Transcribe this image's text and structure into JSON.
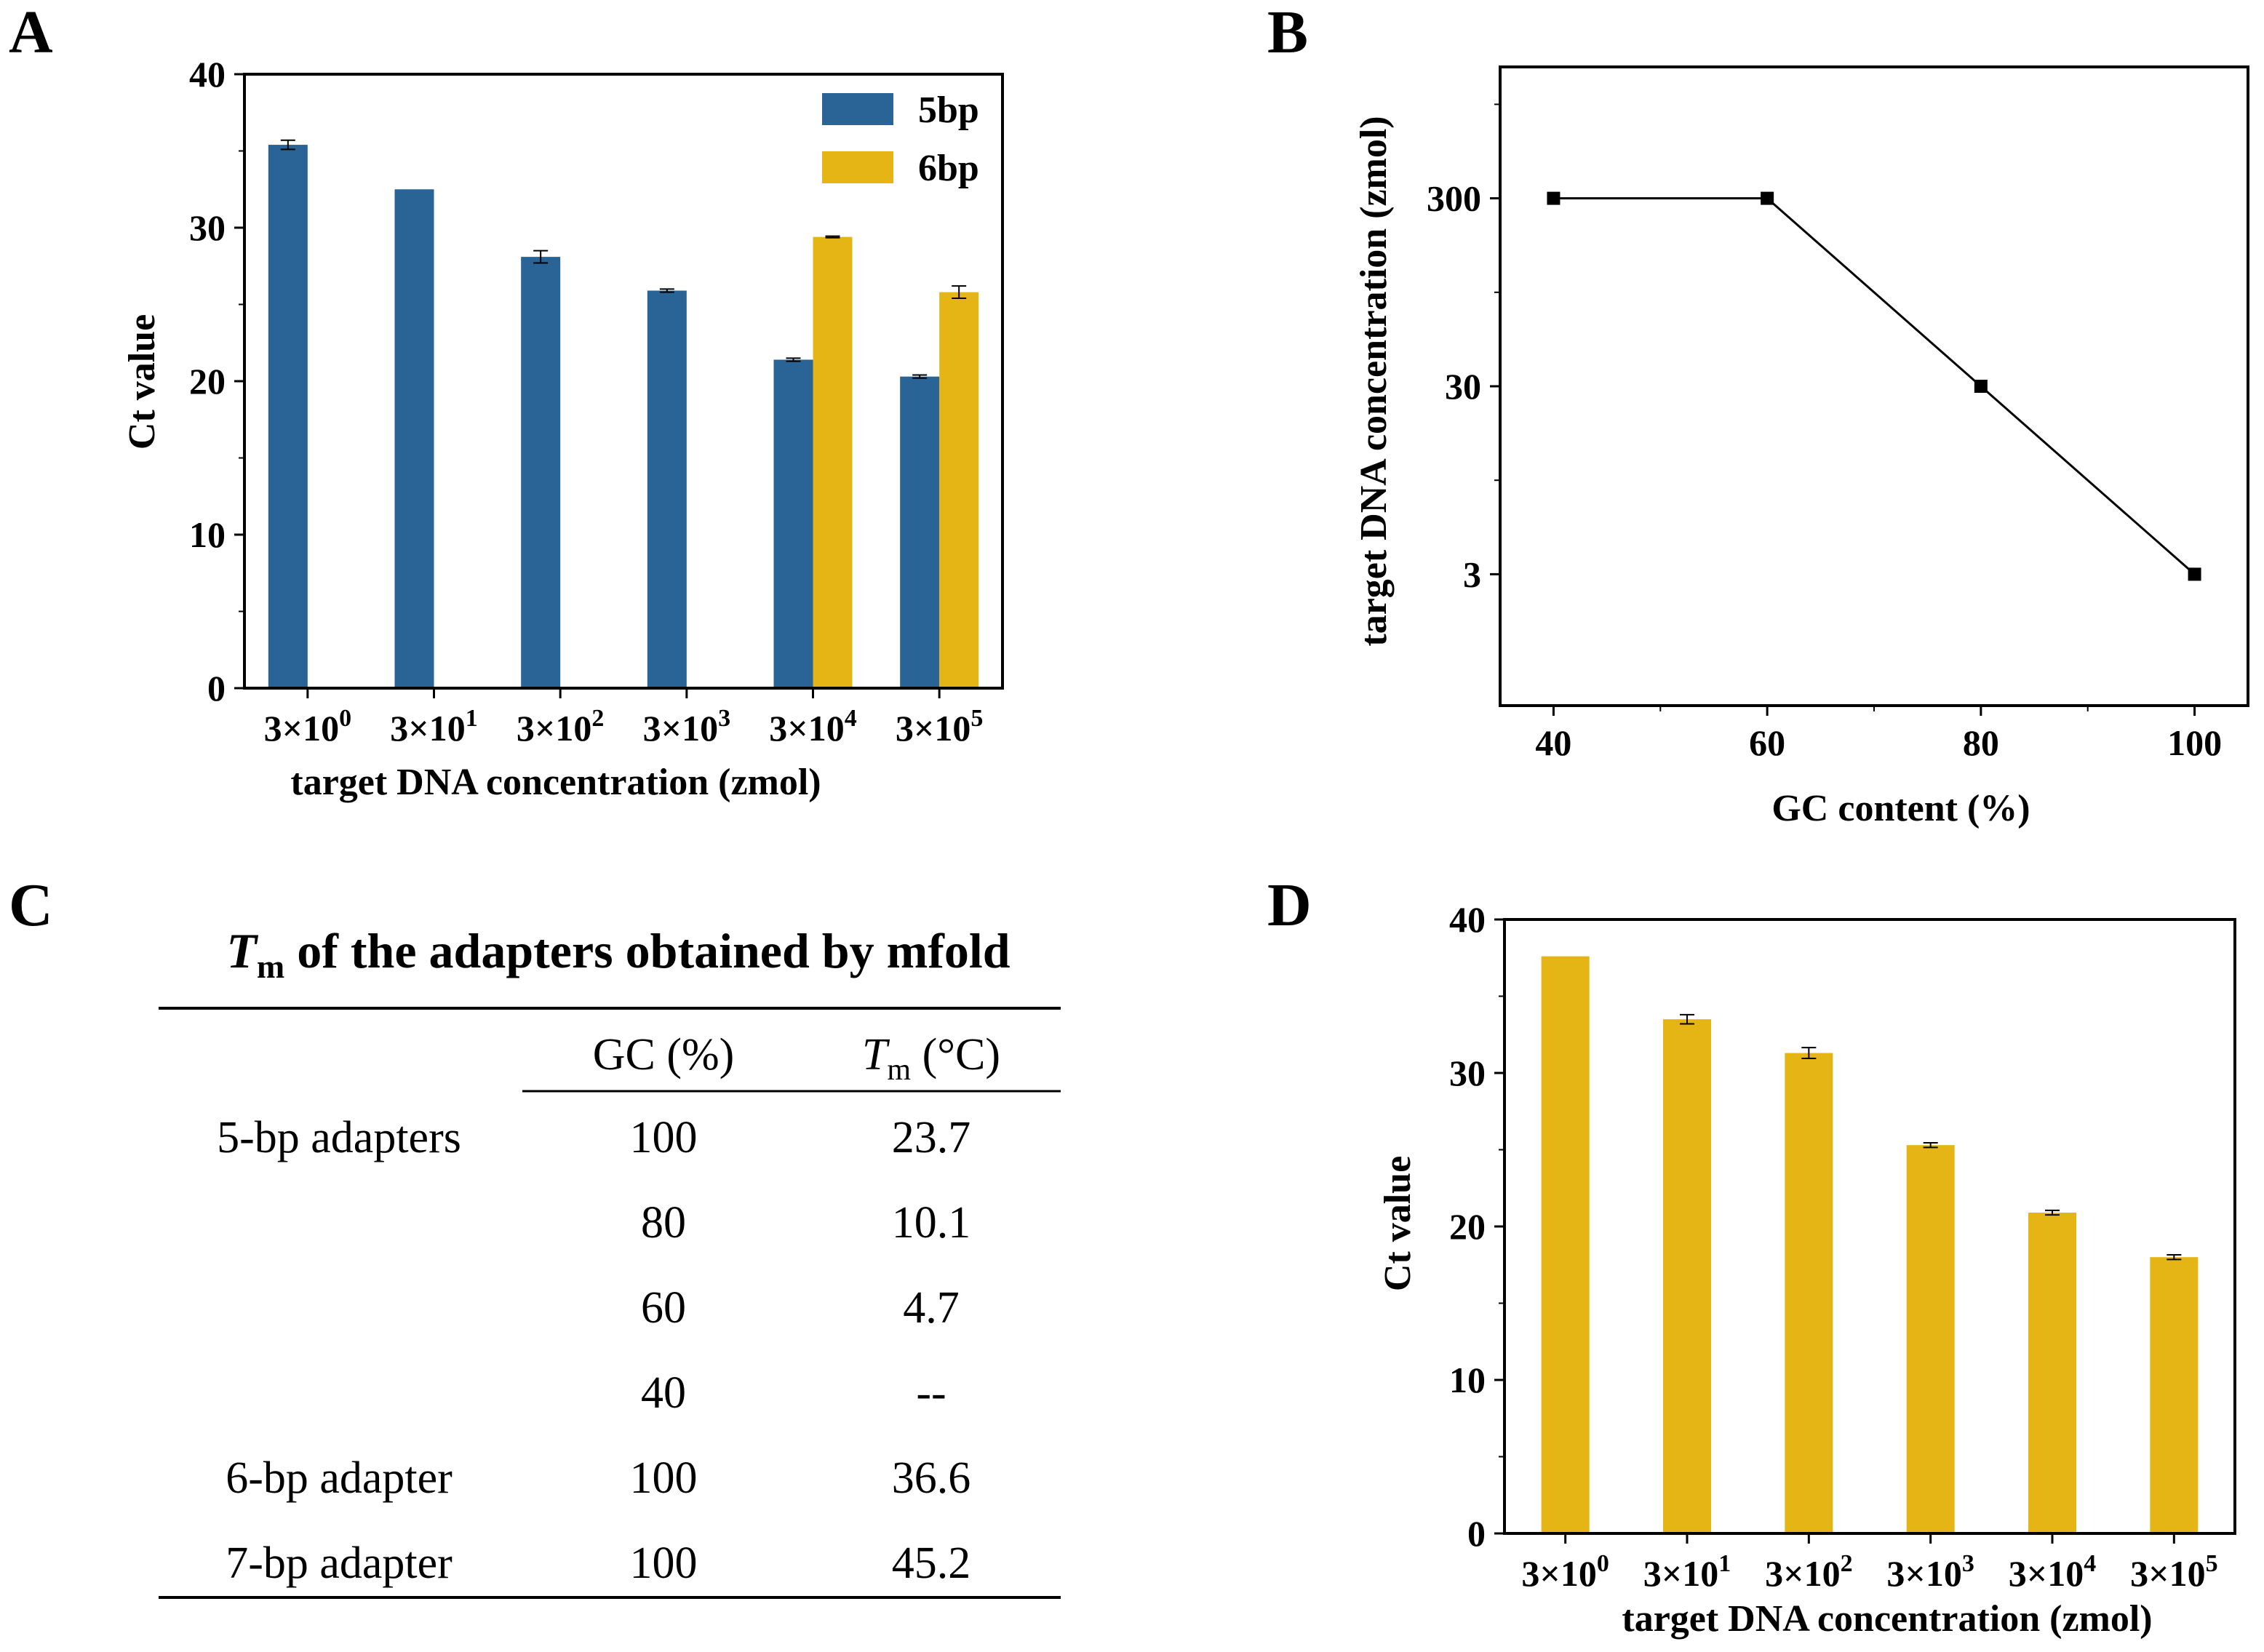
{
  "panels": {
    "A": {
      "label": "A"
    },
    "B": {
      "label": "B"
    },
    "C": {
      "label": "C"
    },
    "D": {
      "label": "D"
    }
  },
  "colors": {
    "blue": "#2A6496",
    "yellow": "#E5B415",
    "axis": "#000000"
  },
  "chart_data": [
    {
      "panel": "A",
      "type": "bar",
      "title": "",
      "categories": [
        "3×10⁰",
        "3×10¹",
        "3×10²",
        "3×10³",
        "3×10⁴",
        "3×10⁵"
      ],
      "series": [
        {
          "name": "5bp",
          "color": "#2A6496",
          "values": [
            35.4,
            32.5,
            28.1,
            25.9,
            21.4,
            20.3
          ],
          "errors": [
            0.3,
            0,
            0.4,
            0.1,
            0.1,
            0.1
          ]
        },
        {
          "name": "6bp",
          "color": "#E5B415",
          "values": [
            null,
            null,
            null,
            null,
            29.4,
            25.8
          ],
          "errors": [
            0,
            0,
            0,
            0,
            0.05,
            0.4
          ]
        }
      ],
      "xlabel": "target DNA concentration (zmol)",
      "ylabel": "Ct value",
      "ylim": [
        0,
        40
      ],
      "yticks": [
        0,
        10,
        20,
        30,
        40
      ],
      "legend": "top-right"
    },
    {
      "panel": "B",
      "type": "line",
      "title": "",
      "x": [
        40,
        60,
        80,
        100
      ],
      "y": [
        300,
        300,
        30,
        3
      ],
      "xlabel": "GC content (%)",
      "ylabel": "target DNA concentration (zmol)",
      "xlim": [
        35,
        105
      ],
      "xticks": [
        40,
        60,
        80,
        100
      ],
      "yscale": "log",
      "ylim": [
        0.6,
        1500
      ],
      "yticks": [
        3,
        30,
        300
      ],
      "ytick_labels": [
        "3",
        "30",
        "300"
      ],
      "marker": "square"
    },
    {
      "panel": "C",
      "type": "table",
      "title_italic": "T",
      "title_sub": "m",
      "title_rest": " of the adapters obtained by mfold",
      "header_gc": "GC (%)",
      "header_tm_italic": "T",
      "header_tm_sub": "m",
      "header_tm_rest": " (°C)",
      "rows": [
        {
          "group": "5-bp adapters",
          "gc": "100",
          "tm": "23.7"
        },
        {
          "group": "",
          "gc": "80",
          "tm": "10.1"
        },
        {
          "group": "",
          "gc": "60",
          "tm": "4.7"
        },
        {
          "group": "",
          "gc": "40",
          "tm": "--"
        },
        {
          "group": "6-bp adapter",
          "gc": "100",
          "tm": "36.6"
        },
        {
          "group": "7-bp adapter",
          "gc": "100",
          "tm": "45.2"
        }
      ]
    },
    {
      "panel": "D",
      "type": "bar",
      "title": "",
      "categories": [
        "3×10⁰",
        "3×10¹",
        "3×10²",
        "3×10³",
        "3×10⁴",
        "3×10⁵"
      ],
      "series": [
        {
          "name": "Ct",
          "color": "#E5B415",
          "values": [
            37.6,
            33.5,
            31.3,
            25.3,
            20.9,
            18.0
          ],
          "errors": [
            0,
            0.3,
            0.35,
            0.15,
            0.15,
            0.15
          ]
        }
      ],
      "xlabel": "target DNA concentration (zmol)",
      "ylabel": "Ct value",
      "ylim": [
        0,
        40
      ],
      "yticks": [
        0,
        10,
        20,
        30,
        40
      ]
    }
  ]
}
